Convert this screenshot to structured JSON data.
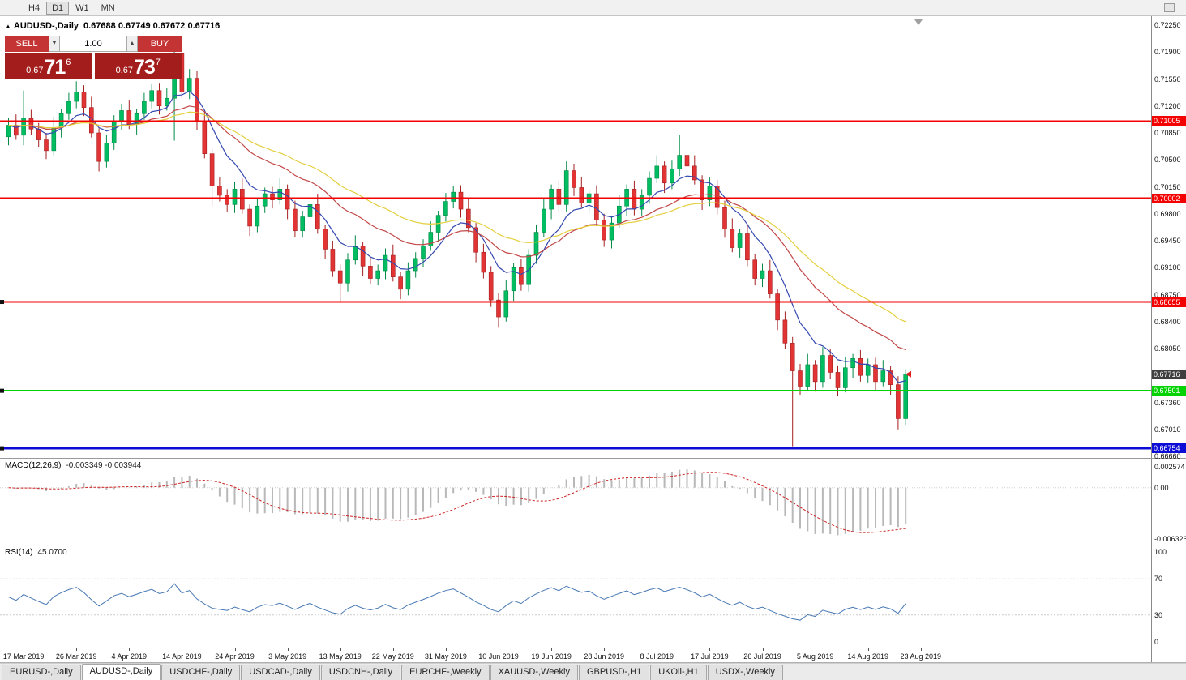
{
  "toolbar": {
    "timeframes": [
      "H4",
      "D1",
      "W1",
      "MN"
    ],
    "active": "D1"
  },
  "icons": {
    "symbol_arrow": "▲",
    "volume_down": "▼",
    "volume_up": "▲"
  },
  "chart_header": {
    "symbol": "AUDUSD-,Daily",
    "ohlc": "0.67688 0.67749 0.67672 0.67716"
  },
  "trade_panel": {
    "sell_label": "SELL",
    "buy_label": "BUY",
    "volume": "1.00",
    "sell_price": {
      "prefix": "0.67",
      "big": "71",
      "sup": "6"
    },
    "buy_price": {
      "prefix": "0.67",
      "big": "73",
      "sup": "7"
    }
  },
  "chart_data": {
    "type": "candlestick",
    "title": "AUDUSD-,Daily",
    "symbol": "AUDUSD",
    "timeframe": "Daily",
    "first_open": 0.708,
    "closes": [
      0.7095,
      0.7082,
      0.7104,
      0.709,
      0.7076,
      0.7062,
      0.7092,
      0.711,
      0.7126,
      0.7138,
      0.7118,
      0.7085,
      0.7048,
      0.7072,
      0.71,
      0.7114,
      0.7096,
      0.711,
      0.7126,
      0.714,
      0.712,
      0.713,
      0.7188,
      0.7138,
      0.7156,
      0.71,
      0.7058,
      0.7016,
      0.7004,
      0.6992,
      0.7012,
      0.6986,
      0.6964,
      0.699,
      0.7006,
      0.6998,
      0.7012,
      0.6986,
      0.6958,
      0.6976,
      0.6992,
      0.696,
      0.6934,
      0.6906,
      0.689,
      0.692,
      0.6938,
      0.6912,
      0.6896,
      0.6906,
      0.6926,
      0.6898,
      0.6882,
      0.6906,
      0.6922,
      0.6938,
      0.6956,
      0.6978,
      0.6996,
      0.7008,
      0.6986,
      0.6962,
      0.693,
      0.6904,
      0.6868,
      0.6846,
      0.688,
      0.691,
      0.6888,
      0.6926,
      0.6956,
      0.6986,
      0.7012,
      0.6992,
      0.7036,
      0.7014,
      0.6994,
      0.7006,
      0.6972,
      0.6946,
      0.6968,
      0.699,
      0.7012,
      0.6986,
      0.7004,
      0.7026,
      0.7042,
      0.702,
      0.7038,
      0.7056,
      0.7042,
      0.7024,
      0.6998,
      0.7016,
      0.6988,
      0.696,
      0.6936,
      0.6954,
      0.692,
      0.6896,
      0.6906,
      0.6876,
      0.6842,
      0.6812,
      0.6776,
      0.6756,
      0.6784,
      0.6762,
      0.6796,
      0.6774,
      0.6754,
      0.678,
      0.6792,
      0.677,
      0.6784,
      0.6762,
      0.6776,
      0.6758,
      0.6714,
      0.67716
    ],
    "wick_up": [
      0.0009,
      0.0014,
      0.0006,
      0.0011,
      0.0008
    ],
    "wick_dn": [
      0.0011,
      0.0006,
      0.0013,
      0.0008,
      0.0009
    ],
    "wick_overrides": {
      "2": {
        "h": 0.714
      },
      "9": {
        "h": 0.7152
      },
      "22": {
        "h": 0.7205,
        "l": 0.7075
      },
      "24": {
        "h": 0.7168
      },
      "27": {
        "l": 0.699
      },
      "44": {
        "l": 0.6865
      },
      "65": {
        "l": 0.6832
      },
      "74": {
        "h": 0.7048
      },
      "89": {
        "h": 0.7082
      },
      "104": {
        "l": 0.6678
      },
      "118": {
        "l": 0.67
      },
      "119": {
        "h": 0.6778,
        "l": 0.6706
      }
    },
    "colors": {
      "up": "#00bd62",
      "down": "#e23434",
      "up_border": "#008a46",
      "down_border": "#a51f1f"
    },
    "moving_averages": [
      {
        "name": "ma-fast",
        "period": 8,
        "type": "ema",
        "color": "#3448b0"
      },
      {
        "name": "ma-mid",
        "period": 21,
        "type": "ema",
        "color": "#c24646"
      },
      {
        "name": "ma-slow",
        "period": 34,
        "type": "ema",
        "color": "#e3cf3c"
      }
    ],
    "y_axis": {
      "top": 0.7225,
      "step": 0.0035,
      "ticks": [
        "0.72250",
        "0.71900",
        "0.71550",
        "0.71200",
        "0.70850",
        "0.70500",
        "0.70150",
        "0.69800",
        "0.69450",
        "0.69100",
        "0.68750",
        "0.68400",
        "0.68050",
        "0.67710",
        "0.67360",
        "0.67010",
        "0.66660"
      ]
    },
    "hlines": [
      {
        "value": "0.71005",
        "price": 0.71005,
        "color": "#f40000",
        "width": 2,
        "handle": false
      },
      {
        "value": "0.70002",
        "price": 0.70002,
        "color": "#f40000",
        "width": 2,
        "handle": false
      },
      {
        "value": "0.68655",
        "price": 0.68655,
        "color": "#f40000",
        "width": 2,
        "handle": true
      },
      {
        "value": "0.67501",
        "price": 0.67501,
        "color": "#00d300",
        "width": 2,
        "handle": true
      },
      {
        "value": "0.66754",
        "price": 0.66754,
        "color": "#0c0cd6",
        "width": 3,
        "handle": true
      }
    ],
    "current_price": {
      "value": "0.67716",
      "price": 0.67716,
      "color": "#3f3f3f"
    },
    "x_labels": [
      {
        "i": 2,
        "label": "17 Mar 2019"
      },
      {
        "i": 9,
        "label": "26 Mar 2019"
      },
      {
        "i": 16,
        "label": "4 Apr 2019"
      },
      {
        "i": 23,
        "label": "14 Apr 2019"
      },
      {
        "i": 30,
        "label": "24 Apr 2019"
      },
      {
        "i": 37,
        "label": "3 May 2019"
      },
      {
        "i": 44,
        "label": "13 May 2019"
      },
      {
        "i": 51,
        "label": "22 May 2019"
      },
      {
        "i": 58,
        "label": "31 May 2019"
      },
      {
        "i": 65,
        "label": "10 Jun 2019"
      },
      {
        "i": 72,
        "label": "19 Jun 2019"
      },
      {
        "i": 79,
        "label": "28 Jun 2019"
      },
      {
        "i": 86,
        "label": "8 Jul 2019"
      },
      {
        "i": 93,
        "label": "17 Jul 2019"
      },
      {
        "i": 100,
        "label": "26 Jul 2019"
      },
      {
        "i": 107,
        "label": "5 Aug 2019"
      },
      {
        "i": 114,
        "label": "14 Aug 2019"
      },
      {
        "i": 121,
        "label": "23 Aug 2019"
      }
    ]
  },
  "macd": {
    "label": "MACD(12,26,9)",
    "values_text": "-0.003349 -0.003944",
    "params": {
      "fast": 12,
      "slow": 26,
      "signal": 9
    },
    "scale": [
      {
        "text": "0.002574",
        "v": 0.002574
      },
      {
        "text": "0.00",
        "v": 0
      },
      {
        "text": "-0.006326",
        "v": -0.006326
      }
    ],
    "histogram_color": "#b8b8b8",
    "signal_color": "#cc2222"
  },
  "rsi": {
    "label": "RSI(14)",
    "value_text": "45.0700",
    "period": 14,
    "line_color": "#4878b4",
    "levels": [
      70,
      30
    ],
    "scale": [
      {
        "text": "100",
        "v": 100
      },
      {
        "text": "70",
        "v": 70
      },
      {
        "text": "30",
        "v": 30
      },
      {
        "text": "0",
        "v": 0
      }
    ]
  },
  "tabs": {
    "active_index": 1,
    "items": [
      "EURUSD-,Daily",
      "AUDUSD-,Daily",
      "USDCHF-,Daily",
      "USDCAD-,Daily",
      "USDCNH-,Daily",
      "EURCHF-,Weekly",
      "XAUUSD-,Weekly",
      "GBPUSD-,H1",
      "UKOil-,H1",
      "USDX-,Weekly"
    ]
  }
}
